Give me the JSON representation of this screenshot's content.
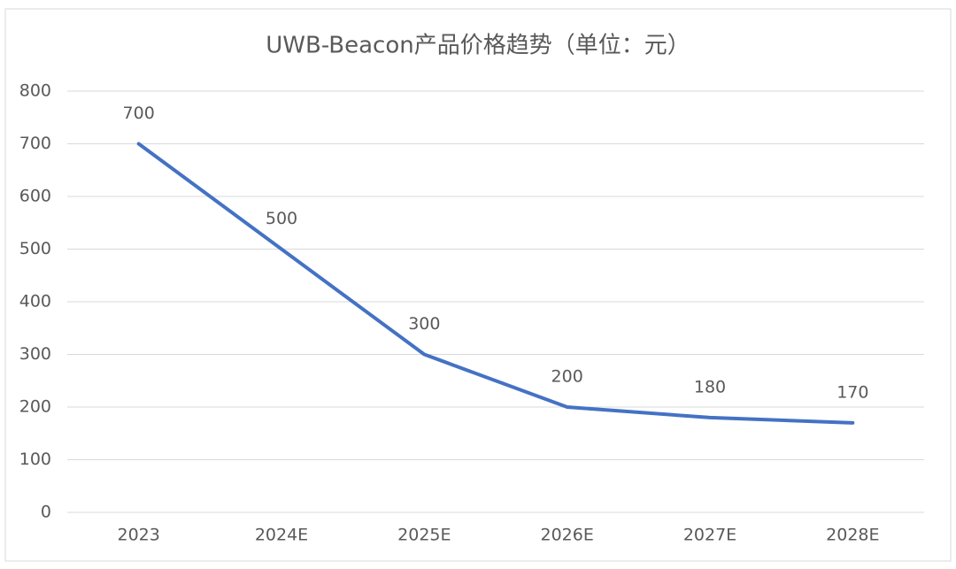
{
  "chart_data": {
    "type": "line",
    "title": "UWB-Beacon产品价格趋势（单位：元）",
    "categories": [
      "2023",
      "2024E",
      "2025E",
      "2026E",
      "2027E",
      "2028E"
    ],
    "values": [
      700,
      500,
      300,
      200,
      180,
      170
    ],
    "color": "#4472c4",
    "ylim": [
      0,
      800
    ],
    "yticks": [
      0,
      100,
      200,
      300,
      400,
      500,
      600,
      700,
      800
    ],
    "grid": true
  }
}
